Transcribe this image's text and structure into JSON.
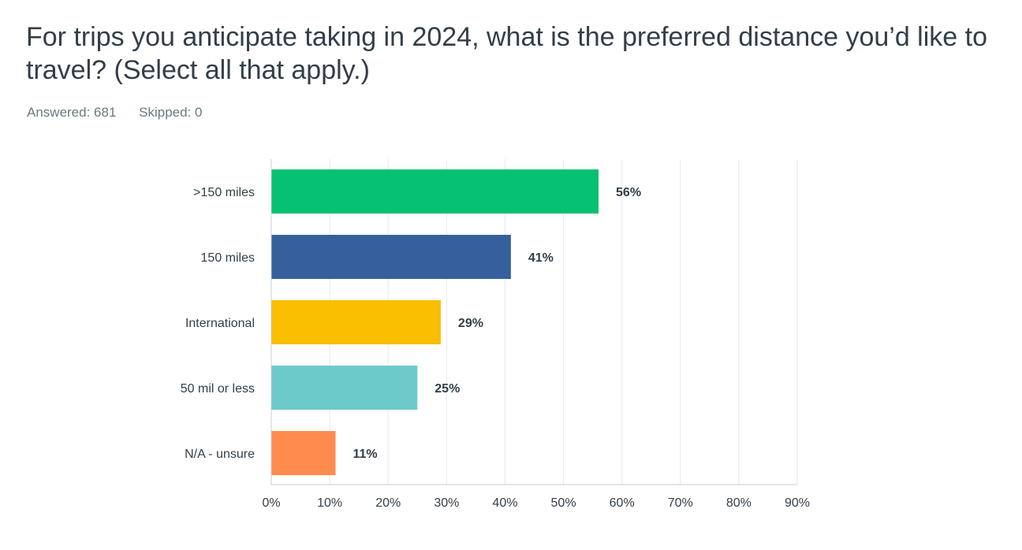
{
  "question": {
    "title": "For trips you anticipate taking in 2024, what is the preferred distance you’d like to travel? (Select all that apply.)",
    "answered": "Answered: 681",
    "skipped": "Skipped: 0"
  },
  "chart_data": {
    "type": "bar",
    "orientation": "horizontal",
    "categories": [
      ">150 miles",
      "150 miles",
      "International",
      "50 mil or less",
      "N/A - unsure"
    ],
    "values": [
      56,
      41,
      29,
      25,
      11
    ],
    "value_labels": [
      "56%",
      "41%",
      "29%",
      "25%",
      "11%"
    ],
    "colors": [
      "#05c171",
      "#36609b",
      "#f9be00",
      "#6ccacb",
      "#ff8b4f"
    ],
    "xlim": [
      0,
      90
    ],
    "xticks": [
      0,
      10,
      20,
      30,
      40,
      50,
      60,
      70,
      80,
      90
    ],
    "xtick_labels": [
      "0%",
      "10%",
      "20%",
      "30%",
      "40%",
      "50%",
      "60%",
      "70%",
      "80%",
      "90%"
    ],
    "grid": true,
    "gridline_color": "#e6e8ea",
    "axis_color": "#c9ced2"
  }
}
